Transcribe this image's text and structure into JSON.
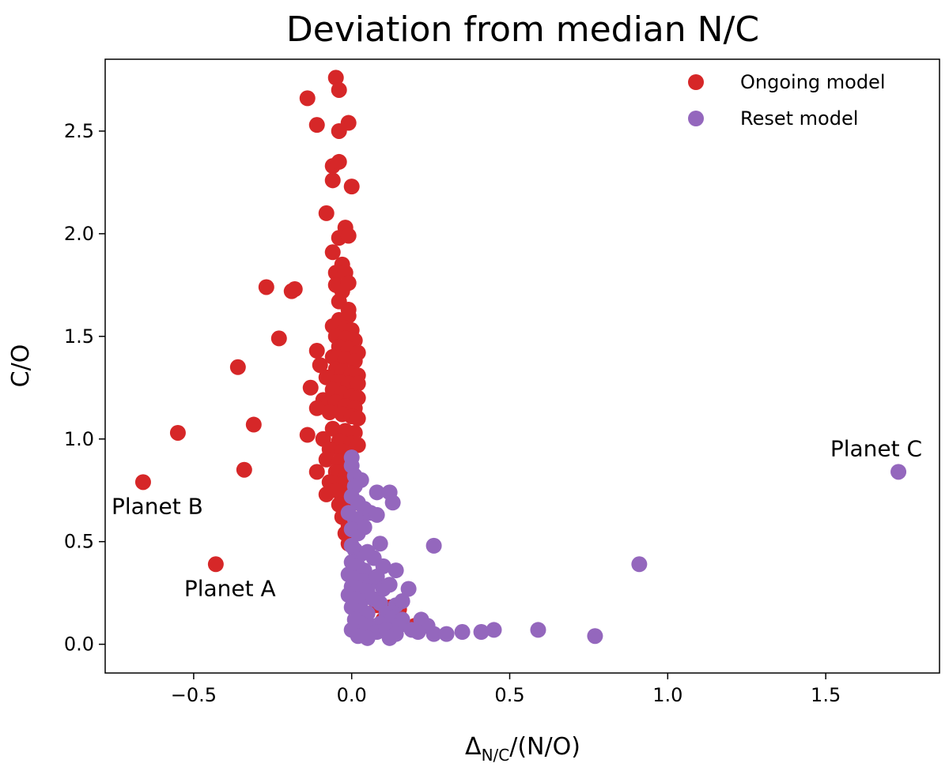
{
  "chart_data": {
    "type": "scatter",
    "title": "Deviation from median N/C",
    "xlabel_main": "Δ",
    "xlabel_sub": "N/C",
    "xlabel_rest": "/(N/O)",
    "ylabel": "C/O",
    "xlim": [
      -0.78,
      1.86
    ],
    "ylim": [
      -0.14,
      2.85
    ],
    "xticks": [
      -0.5,
      0.0,
      0.5,
      1.0,
      1.5
    ],
    "xtick_labels": [
      "−0.5",
      "0.0",
      "0.5",
      "1.0",
      "1.5"
    ],
    "yticks": [
      0.0,
      0.5,
      1.0,
      1.5,
      2.0,
      2.5
    ],
    "ytick_labels": [
      "0.0",
      "0.5",
      "1.0",
      "1.5",
      "2.0",
      "2.5"
    ],
    "grid": false,
    "legend_position": "top-right",
    "series": [
      {
        "name": "Ongoing model",
        "color": "#d62728",
        "points": [
          [
            -0.05,
            2.76
          ],
          [
            -0.04,
            2.7
          ],
          [
            -0.14,
            2.66
          ],
          [
            -0.11,
            2.53
          ],
          [
            -0.01,
            2.54
          ],
          [
            -0.04,
            2.5
          ],
          [
            -0.06,
            2.33
          ],
          [
            -0.04,
            2.35
          ],
          [
            -0.06,
            2.26
          ],
          [
            0.0,
            2.23
          ],
          [
            -0.08,
            2.1
          ],
          [
            -0.02,
            2.03
          ],
          [
            -0.04,
            1.98
          ],
          [
            -0.01,
            1.99
          ],
          [
            -0.06,
            1.91
          ],
          [
            -0.03,
            1.85
          ],
          [
            -0.05,
            1.81
          ],
          [
            -0.02,
            1.81
          ],
          [
            -0.27,
            1.74
          ],
          [
            -0.19,
            1.72
          ],
          [
            -0.18,
            1.73
          ],
          [
            -0.05,
            1.75
          ],
          [
            -0.03,
            1.72
          ],
          [
            -0.01,
            1.76
          ],
          [
            -0.04,
            1.67
          ],
          [
            -0.01,
            1.63
          ],
          [
            -0.04,
            1.58
          ],
          [
            -0.01,
            1.6
          ],
          [
            -0.06,
            1.55
          ],
          [
            -0.02,
            1.54
          ],
          [
            0.0,
            1.53
          ],
          [
            -0.23,
            1.49
          ],
          [
            -0.05,
            1.5
          ],
          [
            -0.02,
            1.49
          ],
          [
            0.01,
            1.48
          ],
          [
            -0.04,
            1.45
          ],
          [
            -0.01,
            1.44
          ],
          [
            0.02,
            1.42
          ],
          [
            -0.11,
            1.43
          ],
          [
            -0.06,
            1.4
          ],
          [
            -0.02,
            1.39
          ],
          [
            0.01,
            1.38
          ],
          [
            -0.1,
            1.36
          ],
          [
            -0.05,
            1.34
          ],
          [
            -0.03,
            1.33
          ],
          [
            0.0,
            1.32
          ],
          [
            0.02,
            1.31
          ],
          [
            -0.36,
            1.35
          ],
          [
            -0.08,
            1.3
          ],
          [
            -0.04,
            1.28
          ],
          [
            -0.01,
            1.27
          ],
          [
            0.02,
            1.27
          ],
          [
            -0.06,
            1.24
          ],
          [
            -0.13,
            1.25
          ],
          [
            -0.03,
            1.22
          ],
          [
            0.0,
            1.21
          ],
          [
            0.02,
            1.2
          ],
          [
            -0.09,
            1.19
          ],
          [
            -0.05,
            1.18
          ],
          [
            -0.02,
            1.16
          ],
          [
            0.01,
            1.15
          ],
          [
            -0.11,
            1.15
          ],
          [
            -0.07,
            1.13
          ],
          [
            -0.03,
            1.12
          ],
          [
            0.0,
            1.11
          ],
          [
            0.02,
            1.1
          ],
          [
            -0.31,
            1.07
          ],
          [
            -0.55,
            1.03
          ],
          [
            -0.14,
            1.02
          ],
          [
            -0.06,
            1.05
          ],
          [
            -0.02,
            1.04
          ],
          [
            0.01,
            1.03
          ],
          [
            -0.09,
            1.0
          ],
          [
            -0.04,
            0.99
          ],
          [
            0.0,
            0.98
          ],
          [
            0.02,
            0.97
          ],
          [
            -0.07,
            0.95
          ],
          [
            -0.03,
            0.94
          ],
          [
            -0.08,
            0.9
          ],
          [
            -0.04,
            0.89
          ],
          [
            -0.01,
            0.88
          ],
          [
            -0.05,
            0.84
          ],
          [
            -0.11,
            0.84
          ],
          [
            -0.02,
            0.82
          ],
          [
            -0.34,
            0.85
          ],
          [
            -0.66,
            0.79
          ],
          [
            -0.07,
            0.79
          ],
          [
            -0.03,
            0.78
          ],
          [
            -0.05,
            0.75
          ],
          [
            -0.08,
            0.73
          ],
          [
            -0.02,
            0.71
          ],
          [
            -0.04,
            0.68
          ],
          [
            -0.01,
            0.66
          ],
          [
            -0.03,
            0.62
          ],
          [
            -0.01,
            0.58
          ],
          [
            -0.02,
            0.54
          ],
          [
            -0.01,
            0.49
          ],
          [
            -0.43,
            0.39
          ],
          [
            0.12,
            0.18
          ],
          [
            0.08,
            0.19
          ],
          [
            0.15,
            0.17
          ],
          [
            0.2,
            0.09
          ],
          [
            0.1,
            0.12
          ]
        ]
      },
      {
        "name": "Reset model",
        "color": "#9467bd",
        "points": [
          [
            0.0,
            0.91
          ],
          [
            0.0,
            0.87
          ],
          [
            0.01,
            0.82
          ],
          [
            0.03,
            0.8
          ],
          [
            0.01,
            0.77
          ],
          [
            0.08,
            0.74
          ],
          [
            0.12,
            0.74
          ],
          [
            0.13,
            0.69
          ],
          [
            0.0,
            0.72
          ],
          [
            0.02,
            0.69
          ],
          [
            0.04,
            0.66
          ],
          [
            -0.01,
            0.64
          ],
          [
            0.01,
            0.61
          ],
          [
            0.03,
            0.59
          ],
          [
            0.06,
            0.64
          ],
          [
            0.08,
            0.63
          ],
          [
            0.0,
            0.56
          ],
          [
            0.02,
            0.54
          ],
          [
            0.04,
            0.57
          ],
          [
            0.09,
            0.49
          ],
          [
            0.26,
            0.48
          ],
          [
            0.0,
            0.48
          ],
          [
            0.01,
            0.46
          ],
          [
            0.03,
            0.44
          ],
          [
            0.05,
            0.45
          ],
          [
            0.07,
            0.42
          ],
          [
            0.0,
            0.4
          ],
          [
            0.02,
            0.38
          ],
          [
            0.04,
            0.36
          ],
          [
            0.1,
            0.38
          ],
          [
            0.14,
            0.36
          ],
          [
            -0.01,
            0.34
          ],
          [
            0.01,
            0.32
          ],
          [
            0.03,
            0.31
          ],
          [
            0.06,
            0.3
          ],
          [
            0.08,
            0.33
          ],
          [
            0.0,
            0.28
          ],
          [
            0.02,
            0.27
          ],
          [
            0.05,
            0.26
          ],
          [
            0.1,
            0.27
          ],
          [
            0.12,
            0.29
          ],
          [
            0.18,
            0.27
          ],
          [
            -0.01,
            0.24
          ],
          [
            0.01,
            0.22
          ],
          [
            0.03,
            0.21
          ],
          [
            0.07,
            0.22
          ],
          [
            0.09,
            0.2
          ],
          [
            0.14,
            0.19
          ],
          [
            0.16,
            0.21
          ],
          [
            0.0,
            0.18
          ],
          [
            0.02,
            0.16
          ],
          [
            0.05,
            0.15
          ],
          [
            0.11,
            0.15
          ],
          [
            0.13,
            0.13
          ],
          [
            0.16,
            0.12
          ],
          [
            0.01,
            0.12
          ],
          [
            0.03,
            0.1
          ],
          [
            0.06,
            0.09
          ],
          [
            0.09,
            0.1
          ],
          [
            0.15,
            0.09
          ],
          [
            0.22,
            0.12
          ],
          [
            0.24,
            0.09
          ],
          [
            0.0,
            0.07
          ],
          [
            0.02,
            0.06
          ],
          [
            0.05,
            0.05
          ],
          [
            0.08,
            0.06
          ],
          [
            0.11,
            0.07
          ],
          [
            0.14,
            0.05
          ],
          [
            0.19,
            0.07
          ],
          [
            0.21,
            0.06
          ],
          [
            0.02,
            0.04
          ],
          [
            0.05,
            0.03
          ],
          [
            0.12,
            0.03
          ],
          [
            0.26,
            0.05
          ],
          [
            0.3,
            0.05
          ],
          [
            0.35,
            0.06
          ],
          [
            0.41,
            0.06
          ],
          [
            0.45,
            0.07
          ],
          [
            0.59,
            0.07
          ],
          [
            0.77,
            0.04
          ],
          [
            0.91,
            0.39
          ],
          [
            1.73,
            0.84
          ]
        ]
      }
    ],
    "annotations": [
      {
        "text": "Planet A",
        "x": -0.43,
        "y": 0.39
      },
      {
        "text": "Planet B",
        "x": -0.66,
        "y": 0.79
      },
      {
        "text": "Planet C",
        "x": 1.73,
        "y": 0.84
      }
    ]
  }
}
